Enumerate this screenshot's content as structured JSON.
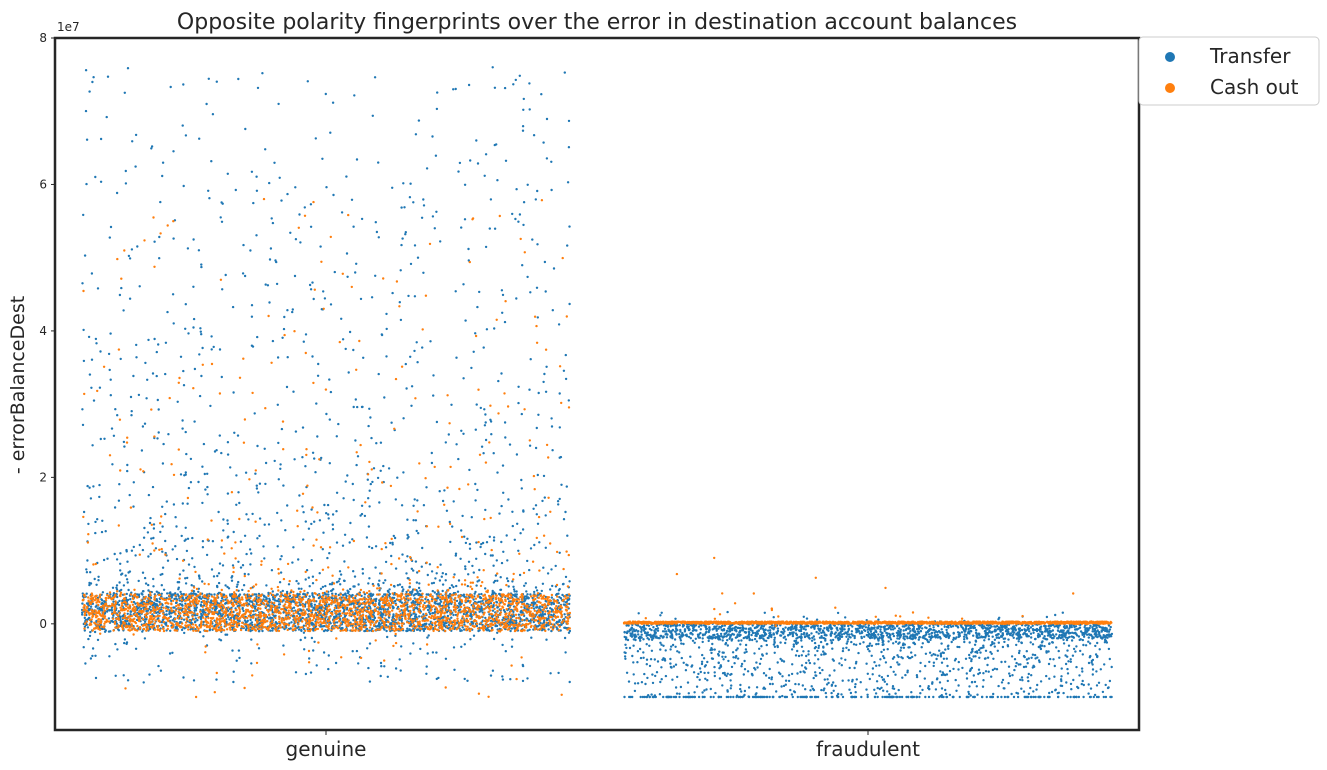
{
  "chart_data": {
    "type": "scatter",
    "title": "Opposite polarity fingerprints over the error in destination account balances",
    "xlabel": "",
    "ylabel": "- errorBalanceDest",
    "categories": [
      "genuine",
      "fraudulent"
    ],
    "y_ticks": [
      0,
      2,
      4,
      6,
      8
    ],
    "y_multiplier_label": "1e7",
    "ylim": [
      -14500000.0,
      80000000.0
    ],
    "grid": false,
    "legend_position": "upper right, outside plot",
    "series": [
      {
        "name": "Transfer",
        "color": "#1f77b4",
        "groups": [
          {
            "category": "genuine",
            "typical_range": [
              -1000000.0,
              4000000.0
            ],
            "max": 76000000.0,
            "min": -8000000.0
          },
          {
            "category": "fraudulent",
            "typical_range": [
              -2000000.0,
              0
            ],
            "max": 1600000.0,
            "min": -10000000.0
          }
        ]
      },
      {
        "name": "Cash out",
        "color": "#ff7f0e",
        "groups": [
          {
            "category": "genuine",
            "typical_range": [
              -1000000.0,
              4000000.0
            ],
            "max": 58000000.0,
            "min": -10000000.0
          },
          {
            "category": "fraudulent",
            "typical_range": [
              0,
              300000.0
            ],
            "max": 9000000.0,
            "min": -300000.0
          }
        ]
      }
    ]
  }
}
